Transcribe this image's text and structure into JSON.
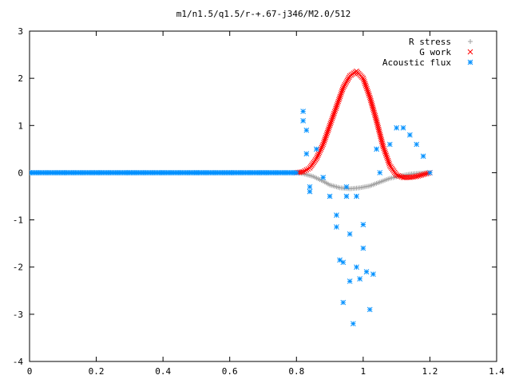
{
  "chart_data": {
    "type": "scatter",
    "title": "m1/n1.5/q1.5/r-+.67-j346/M2.0/512",
    "xlabel": "",
    "ylabel": "",
    "xlim": [
      0,
      1.4
    ],
    "ylim": [
      -4,
      3
    ],
    "x_ticks": [
      "0",
      "0.2",
      "0.4",
      "0.6",
      "0.8",
      "1",
      "1.2",
      "1.4"
    ],
    "y_ticks": [
      "3",
      "2",
      "1",
      "0",
      "-1",
      "-2",
      "-3",
      "-4"
    ],
    "grid": false,
    "legend_position": "top-right",
    "series": [
      {
        "name": "R stress",
        "marker": "plus",
        "color": "#a0a0a0",
        "points": [
          [
            0.0,
            0.0
          ],
          [
            0.1,
            0.0
          ],
          [
            0.2,
            0.0
          ],
          [
            0.3,
            0.0
          ],
          [
            0.4,
            0.0
          ],
          [
            0.5,
            0.0
          ],
          [
            0.6,
            0.0
          ],
          [
            0.7,
            0.0
          ],
          [
            0.8,
            0.0
          ],
          [
            0.82,
            -0.02
          ],
          [
            0.85,
            -0.08
          ],
          [
            0.88,
            -0.18
          ],
          [
            0.9,
            -0.26
          ],
          [
            0.93,
            -0.32
          ],
          [
            0.96,
            -0.34
          ],
          [
            0.99,
            -0.32
          ],
          [
            1.02,
            -0.28
          ],
          [
            1.05,
            -0.2
          ],
          [
            1.08,
            -0.12
          ],
          [
            1.11,
            -0.07
          ],
          [
            1.14,
            -0.03
          ],
          [
            1.17,
            -0.01
          ],
          [
            1.2,
            0.0
          ]
        ]
      },
      {
        "name": "G work",
        "marker": "cross",
        "color": "#ff0000",
        "points": [
          [
            0.8,
            0.0
          ],
          [
            0.82,
            0.02
          ],
          [
            0.84,
            0.1
          ],
          [
            0.86,
            0.3
          ],
          [
            0.88,
            0.6
          ],
          [
            0.9,
            1.0
          ],
          [
            0.92,
            1.4
          ],
          [
            0.94,
            1.8
          ],
          [
            0.96,
            2.05
          ],
          [
            0.98,
            2.15
          ],
          [
            1.0,
            2.0
          ],
          [
            1.02,
            1.6
          ],
          [
            1.04,
            1.1
          ],
          [
            1.06,
            0.55
          ],
          [
            1.08,
            0.15
          ],
          [
            1.1,
            -0.05
          ],
          [
            1.12,
            -0.1
          ],
          [
            1.14,
            -0.1
          ],
          [
            1.16,
            -0.08
          ],
          [
            1.18,
            -0.04
          ],
          [
            1.2,
            0.0
          ]
        ]
      },
      {
        "name": "Acoustic flux",
        "marker": "star",
        "color": "#0090ff",
        "points": [
          [
            0.0,
            0.0
          ],
          [
            0.1,
            0.0
          ],
          [
            0.2,
            0.0
          ],
          [
            0.3,
            0.0
          ],
          [
            0.4,
            0.0
          ],
          [
            0.5,
            0.0
          ],
          [
            0.6,
            0.0
          ],
          [
            0.7,
            0.0
          ],
          [
            0.8,
            0.0
          ],
          [
            0.82,
            1.3
          ],
          [
            0.82,
            1.1
          ],
          [
            0.83,
            0.9
          ],
          [
            0.83,
            0.4
          ],
          [
            0.84,
            -0.3
          ],
          [
            0.84,
            -0.4
          ],
          [
            0.86,
            0.5
          ],
          [
            0.88,
            -0.1
          ],
          [
            0.9,
            -0.5
          ],
          [
            0.92,
            -0.9
          ],
          [
            0.92,
            -1.15
          ],
          [
            0.93,
            -1.85
          ],
          [
            0.94,
            -1.9
          ],
          [
            0.94,
            -2.75
          ],
          [
            0.95,
            -0.3
          ],
          [
            0.95,
            -0.5
          ],
          [
            0.96,
            -2.3
          ],
          [
            0.96,
            -1.3
          ],
          [
            0.97,
            -3.2
          ],
          [
            0.98,
            -2.0
          ],
          [
            0.98,
            -0.5
          ],
          [
            0.99,
            -2.25
          ],
          [
            1.0,
            -1.1
          ],
          [
            1.0,
            -1.6
          ],
          [
            1.01,
            -2.1
          ],
          [
            1.02,
            -2.9
          ],
          [
            1.03,
            -2.15
          ],
          [
            1.04,
            0.5
          ],
          [
            1.05,
            0.0
          ],
          [
            1.08,
            0.6
          ],
          [
            1.1,
            0.95
          ],
          [
            1.12,
            0.95
          ],
          [
            1.14,
            0.8
          ],
          [
            1.16,
            0.6
          ],
          [
            1.18,
            0.35
          ],
          [
            1.2,
            0.0
          ]
        ]
      }
    ]
  }
}
